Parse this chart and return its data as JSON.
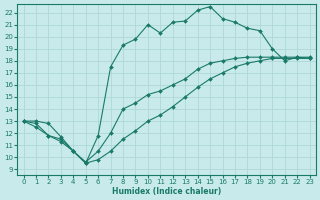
{
  "xlabel": "Humidex (Indice chaleur)",
  "background_color": "#c8eaea",
  "grid_color": "#b0d8d8",
  "line_color": "#1a7a6a",
  "xlim": [
    -0.5,
    23.5
  ],
  "ylim": [
    8.5,
    22.7
  ],
  "yticks": [
    9,
    10,
    11,
    12,
    13,
    14,
    15,
    16,
    17,
    18,
    19,
    20,
    21,
    22
  ],
  "xticks": [
    0,
    1,
    2,
    3,
    4,
    5,
    6,
    7,
    8,
    9,
    10,
    11,
    12,
    13,
    14,
    15,
    16,
    17,
    18,
    19,
    20,
    21,
    22,
    23
  ],
  "line1_x": [
    0,
    1,
    2,
    3,
    4,
    5,
    6,
    7,
    8,
    9,
    10,
    11,
    12,
    13,
    14,
    15,
    16,
    17,
    18,
    19,
    20,
    21,
    22,
    23
  ],
  "line1_y": [
    13.0,
    13.0,
    12.8,
    11.7,
    10.5,
    9.5,
    11.8,
    17.5,
    19.3,
    19.8,
    21.0,
    20.3,
    21.2,
    21.3,
    22.2,
    22.5,
    21.5,
    21.2,
    20.7,
    20.5,
    19.0,
    18.0,
    18.3,
    18.2
  ],
  "line2_x": [
    0,
    1,
    2,
    3,
    4,
    5,
    6,
    7,
    8,
    9,
    10,
    11,
    12,
    13,
    14,
    15,
    16,
    17,
    18,
    19,
    20,
    21,
    22,
    23
  ],
  "line2_y": [
    13.0,
    12.8,
    11.8,
    11.3,
    10.5,
    9.6,
    10.5,
    12.0,
    14.0,
    14.5,
    15.2,
    15.5,
    16.0,
    16.5,
    17.3,
    17.8,
    18.0,
    18.2,
    18.3,
    18.3,
    18.3,
    18.3,
    18.3,
    18.3
  ],
  "line3_x": [
    0,
    1,
    2,
    3,
    4,
    5,
    6,
    7,
    8,
    9,
    10,
    11,
    12,
    13,
    14,
    15,
    16,
    17,
    18,
    19,
    20,
    21,
    22,
    23
  ],
  "line3_y": [
    13.0,
    12.5,
    11.8,
    11.5,
    10.5,
    9.5,
    9.8,
    10.5,
    11.5,
    12.2,
    13.0,
    13.5,
    14.2,
    15.0,
    15.8,
    16.5,
    17.0,
    17.5,
    17.8,
    18.0,
    18.2,
    18.2,
    18.2,
    18.2
  ]
}
